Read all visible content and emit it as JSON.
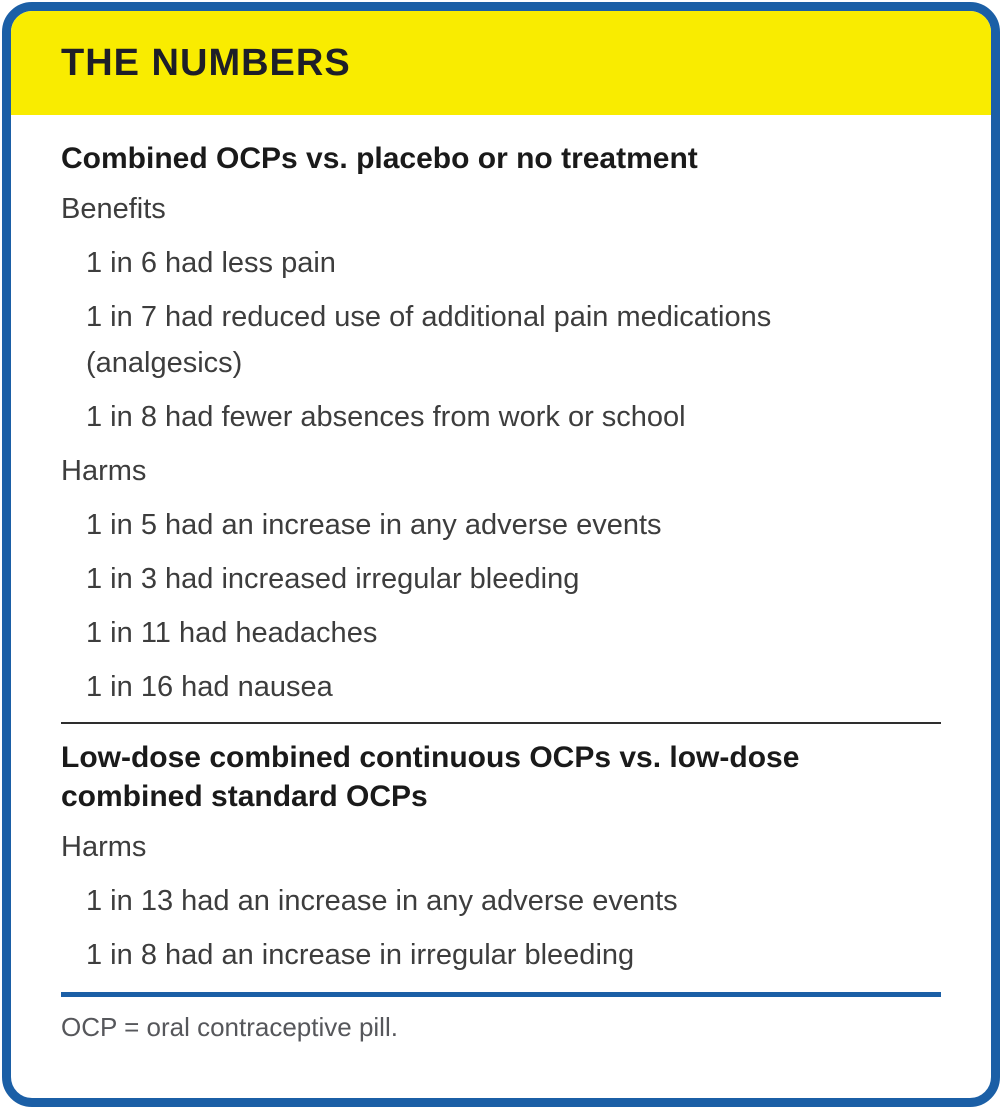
{
  "panel": {
    "title": "THE NUMBERS",
    "colors": {
      "header_background": "#F9EC00",
      "border_blue": "#1B5FA6",
      "title_text": "#1E1E28",
      "heading_text": "#1A1A1A",
      "body_text": "#3D3D3D",
      "dark_rule": "#2E2E2E",
      "footnote_text": "#56575B"
    }
  },
  "section1": {
    "heading": "Combined OCPs vs. placebo or no treatment",
    "benefits_label": "Benefits",
    "benefits": [
      "1 in 6 had less pain",
      "1 in 7 had reduced use of additional pain medications\n(analgesics)",
      "1 in 8 had fewer absences from work or school"
    ],
    "harms_label": "Harms",
    "harms": [
      "1 in 5 had an increase in any adverse events",
      "1 in 3 had increased irregular bleeding",
      "1 in 11 had headaches",
      "1 in 16 had nausea"
    ]
  },
  "section2": {
    "heading": "Low-dose combined continuous OCPs vs. low-dose\ncombined standard OCPs",
    "harms_label": "Harms",
    "harms": [
      "1 in 13 had an increase in any adverse events",
      "1 in 8 had an increase in irregular bleeding"
    ]
  },
  "footnote": "OCP = oral contraceptive pill."
}
